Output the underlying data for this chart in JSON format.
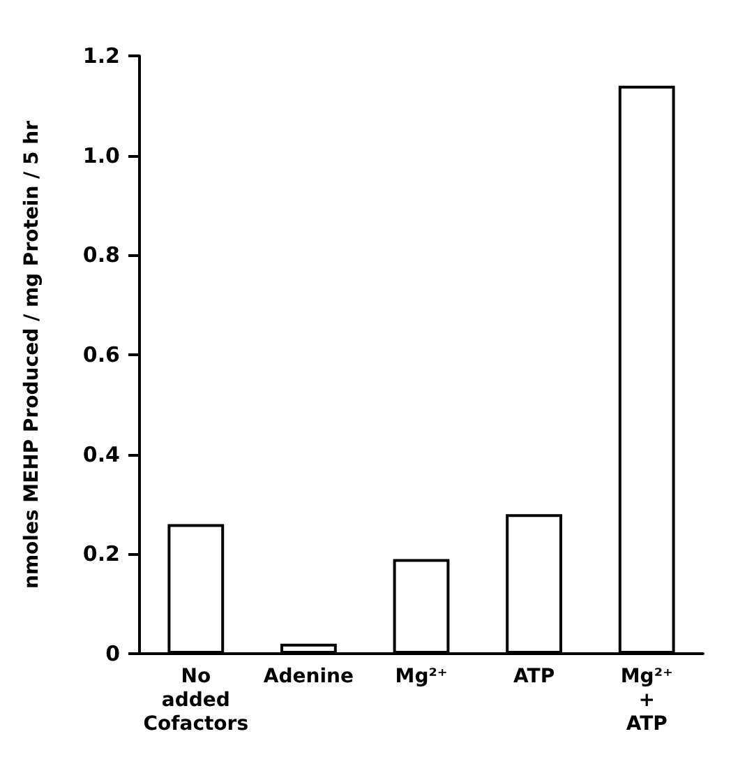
{
  "chart_data": {
    "type": "bar",
    "ylabel": "nmoles MEHP Produced / mg Protein / 5 hr",
    "categories": [
      "No added Cofactors",
      "Adenine",
      "Mg²⁺",
      "ATP",
      "Mg²⁺ + ATP"
    ],
    "values": [
      0.26,
      0.02,
      0.19,
      0.28,
      1.14
    ],
    "color": "#ffffff",
    "ylim": [
      0,
      1.2
    ],
    "yticks": [
      0,
      0.2,
      0.4,
      0.6,
      0.8,
      {
        "value": 1,
        "label": "1.0"
      },
      1.2
    ],
    "grid": false
  }
}
